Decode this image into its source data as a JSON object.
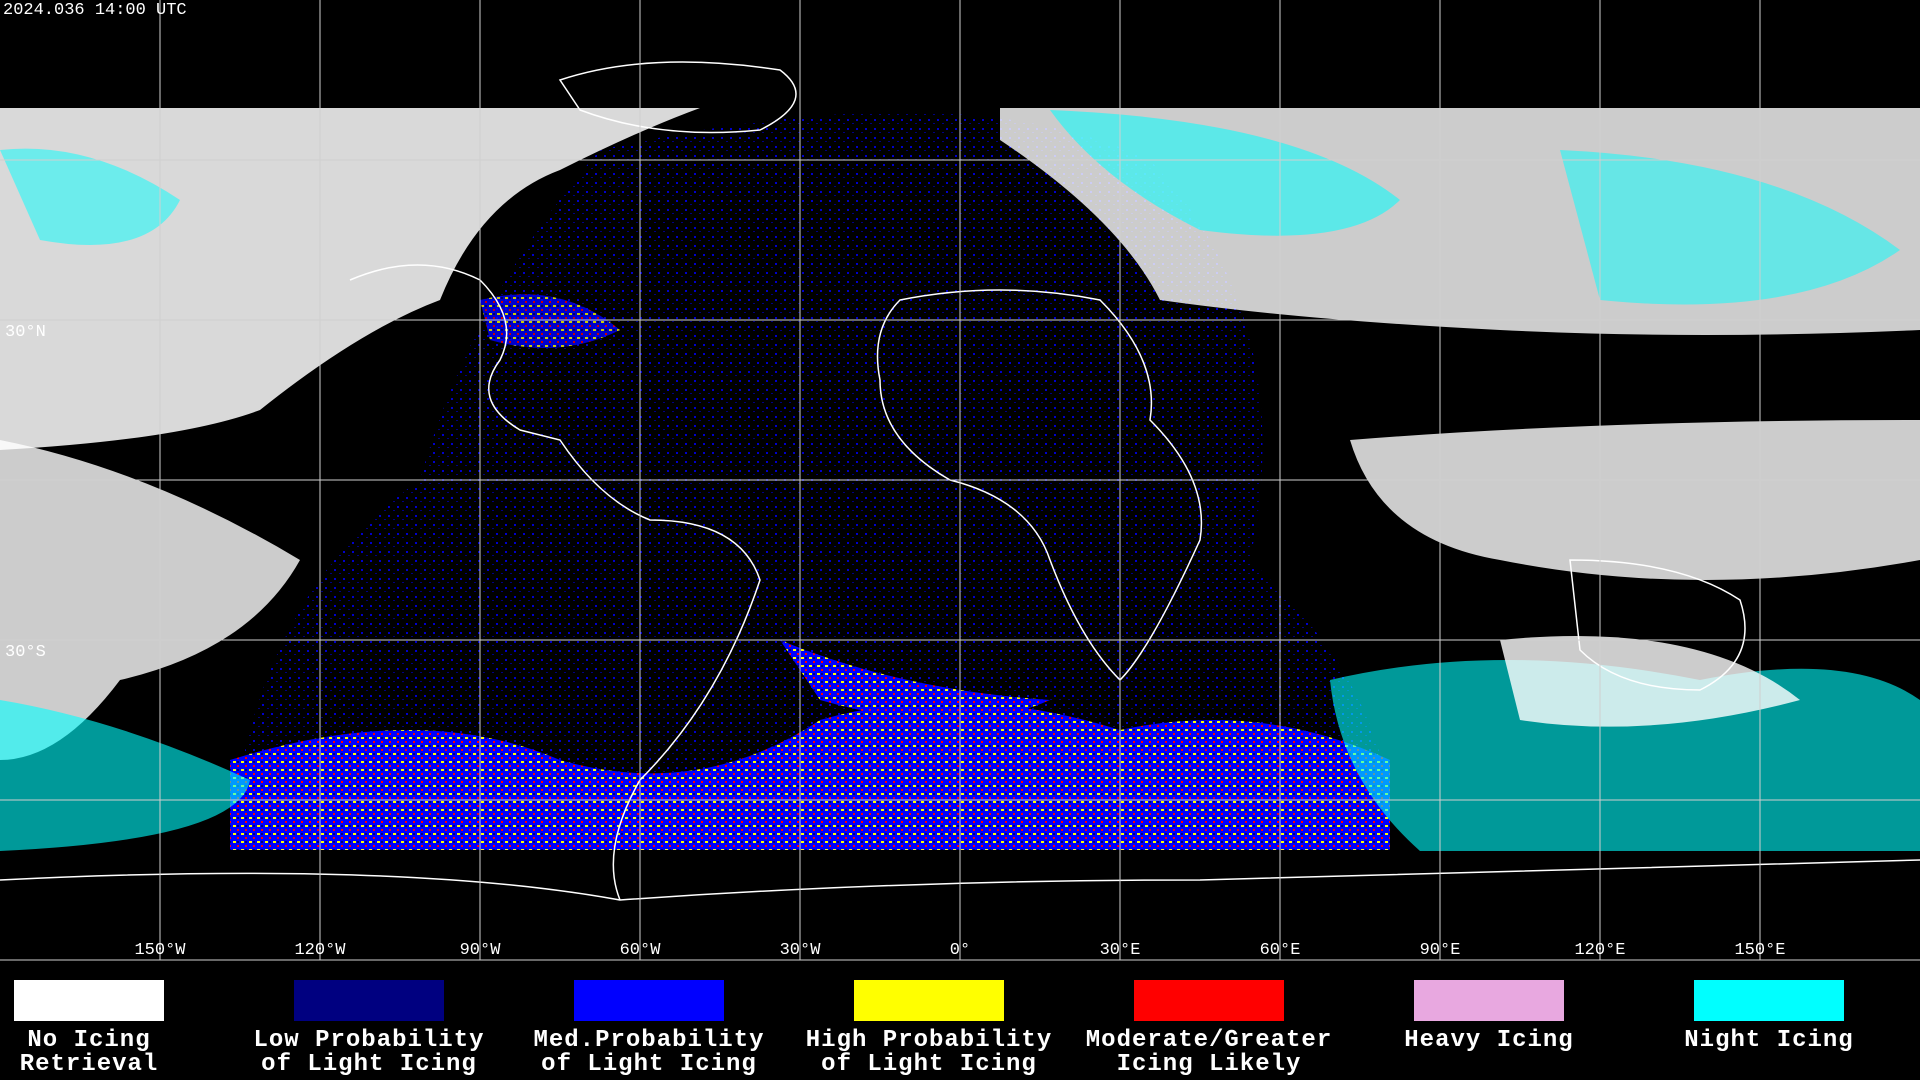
{
  "header": {
    "timestamp": "2024.036 14:00 UTC"
  },
  "map": {
    "lon_ticks": [
      {
        "value": -150,
        "label": "150°W"
      },
      {
        "value": -120,
        "label": "120°W"
      },
      {
        "value": -90,
        "label": "90°W"
      },
      {
        "value": -60,
        "label": "60°W"
      },
      {
        "value": -30,
        "label": "30°W"
      },
      {
        "value": 0,
        "label": "0°"
      },
      {
        "value": 30,
        "label": "30°E"
      },
      {
        "value": 60,
        "label": "60°E"
      },
      {
        "value": 90,
        "label": "90°E"
      },
      {
        "value": 120,
        "label": "120°E"
      },
      {
        "value": 150,
        "label": "150°E"
      }
    ],
    "lat_ticks": [
      {
        "value": 30,
        "label": "30°N"
      },
      {
        "value": -30,
        "label": "30°S"
      }
    ]
  },
  "legend": [
    {
      "color": "#ffffff",
      "label": [
        "No Icing",
        "Retrieval"
      ]
    },
    {
      "color": "#000080",
      "label": [
        "Low Probability",
        "of Light Icing"
      ]
    },
    {
      "color": "#0000ff",
      "label": [
        "Med.Probability",
        "of Light Icing"
      ]
    },
    {
      "color": "#ffff00",
      "label": [
        "High Probability",
        "of Light Icing"
      ]
    },
    {
      "color": "#ff0000",
      "label": [
        "Moderate/Greater",
        "Icing Likely"
      ]
    },
    {
      "color": "#e8a8e0",
      "label": [
        "Heavy Icing"
      ]
    },
    {
      "color": "#00ffff",
      "label": [
        "Night Icing"
      ]
    }
  ]
}
